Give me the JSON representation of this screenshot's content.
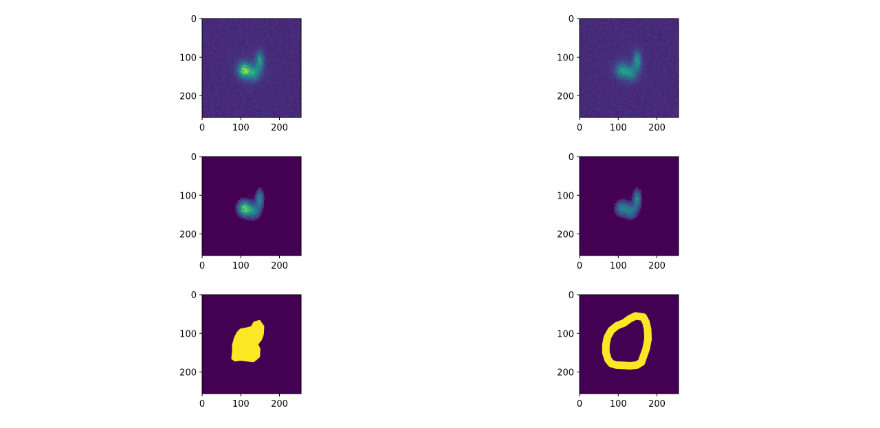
{
  "chart_data": [
    {
      "type": "heatmap",
      "image": "noisy-intensity",
      "xlim": [
        0,
        256
      ],
      "ylim": [
        256,
        0
      ],
      "xticks": [
        "0",
        "100",
        "200"
      ],
      "yticks": [
        "0",
        "100",
        "200"
      ],
      "xtick_values": [
        0,
        100,
        200
      ],
      "ytick_values": [
        0,
        100,
        200
      ],
      "colormap": "viridis",
      "blobs": [
        {
          "x": 108,
          "y": 133,
          "intensity": 1.0
        },
        {
          "x": 132,
          "y": 140,
          "intensity": 0.6
        },
        {
          "x": 148,
          "y": 108,
          "intensity": 0.6
        }
      ]
    },
    {
      "type": "heatmap",
      "image": "noisy-intensity",
      "xlim": [
        0,
        256
      ],
      "ylim": [
        256,
        0
      ],
      "xticks": [
        "0",
        "100",
        "200"
      ],
      "yticks": [
        "0",
        "100",
        "200"
      ],
      "xtick_values": [
        0,
        100,
        200
      ],
      "ytick_values": [
        0,
        100,
        200
      ],
      "colormap": "viridis",
      "blobs": [
        {
          "x": 108,
          "y": 133,
          "intensity": 0.55
        },
        {
          "x": 132,
          "y": 140,
          "intensity": 0.5
        },
        {
          "x": 148,
          "y": 108,
          "intensity": 0.6
        }
      ]
    },
    {
      "type": "heatmap",
      "image": "denoised-intensity",
      "xlim": [
        0,
        256
      ],
      "ylim": [
        256,
        0
      ],
      "xticks": [
        "0",
        "100",
        "200"
      ],
      "yticks": [
        "0",
        "100",
        "200"
      ],
      "xtick_values": [
        0,
        100,
        200
      ],
      "ytick_values": [
        0,
        100,
        200
      ],
      "colormap": "viridis",
      "blobs": [
        {
          "x": 108,
          "y": 133,
          "intensity": 1.0
        },
        {
          "x": 132,
          "y": 140,
          "intensity": 0.6
        },
        {
          "x": 148,
          "y": 108,
          "intensity": 0.6
        }
      ]
    },
    {
      "type": "heatmap",
      "image": "denoised-intensity",
      "xlim": [
        0,
        256
      ],
      "ylim": [
        256,
        0
      ],
      "xticks": [
        "0",
        "100",
        "200"
      ],
      "yticks": [
        "0",
        "100",
        "200"
      ],
      "xtick_values": [
        0,
        100,
        200
      ],
      "ytick_values": [
        0,
        100,
        200
      ],
      "colormap": "viridis",
      "blobs": [
        {
          "x": 108,
          "y": 133,
          "intensity": 0.55
        },
        {
          "x": 132,
          "y": 140,
          "intensity": 0.5
        },
        {
          "x": 148,
          "y": 108,
          "intensity": 0.6
        }
      ]
    },
    {
      "type": "heatmap",
      "image": "filled-mask",
      "xlim": [
        0,
        256
      ],
      "ylim": [
        256,
        0
      ],
      "xticks": [
        "0",
        "100",
        "200"
      ],
      "yticks": [
        "0",
        "100",
        "200"
      ],
      "xtick_values": [
        0,
        100,
        200
      ],
      "ytick_values": [
        0,
        100,
        200
      ],
      "background": "#440154",
      "foreground": "#fde725",
      "outline": [
        [
          148,
          68
        ],
        [
          158,
          82
        ],
        [
          157,
          102
        ],
        [
          152,
          116
        ],
        [
          142,
          128
        ],
        [
          148,
          140
        ],
        [
          147,
          160
        ],
        [
          138,
          168
        ],
        [
          132,
          172
        ],
        [
          115,
          170
        ],
        [
          100,
          168
        ],
        [
          85,
          170
        ],
        [
          78,
          165
        ],
        [
          80,
          147
        ],
        [
          80,
          130
        ],
        [
          85,
          112
        ],
        [
          92,
          98
        ],
        [
          100,
          90
        ],
        [
          112,
          88
        ],
        [
          128,
          84
        ],
        [
          135,
          72
        ]
      ]
    },
    {
      "type": "heatmap",
      "image": "ring-mask",
      "xlim": [
        0,
        256
      ],
      "ylim": [
        256,
        0
      ],
      "xticks": [
        "0",
        "100",
        "200"
      ],
      "yticks": [
        "0",
        "100",
        "200"
      ],
      "xtick_values": [
        0,
        100,
        200
      ],
      "ytick_values": [
        0,
        100,
        200
      ],
      "background": "#440154",
      "foreground": "#fde725",
      "outline": [
        [
          145,
          55
        ],
        [
          165,
          58
        ],
        [
          172,
          72
        ],
        [
          176,
          90
        ],
        [
          177,
          115
        ],
        [
          172,
          140
        ],
        [
          165,
          160
        ],
        [
          160,
          175
        ],
        [
          148,
          182
        ],
        [
          130,
          184
        ],
        [
          115,
          183
        ],
        [
          95,
          182
        ],
        [
          82,
          178
        ],
        [
          74,
          168
        ],
        [
          68,
          150
        ],
        [
          68,
          130
        ],
        [
          72,
          110
        ],
        [
          82,
          92
        ],
        [
          97,
          80
        ],
        [
          115,
          73
        ],
        [
          130,
          62
        ]
      ]
    }
  ]
}
